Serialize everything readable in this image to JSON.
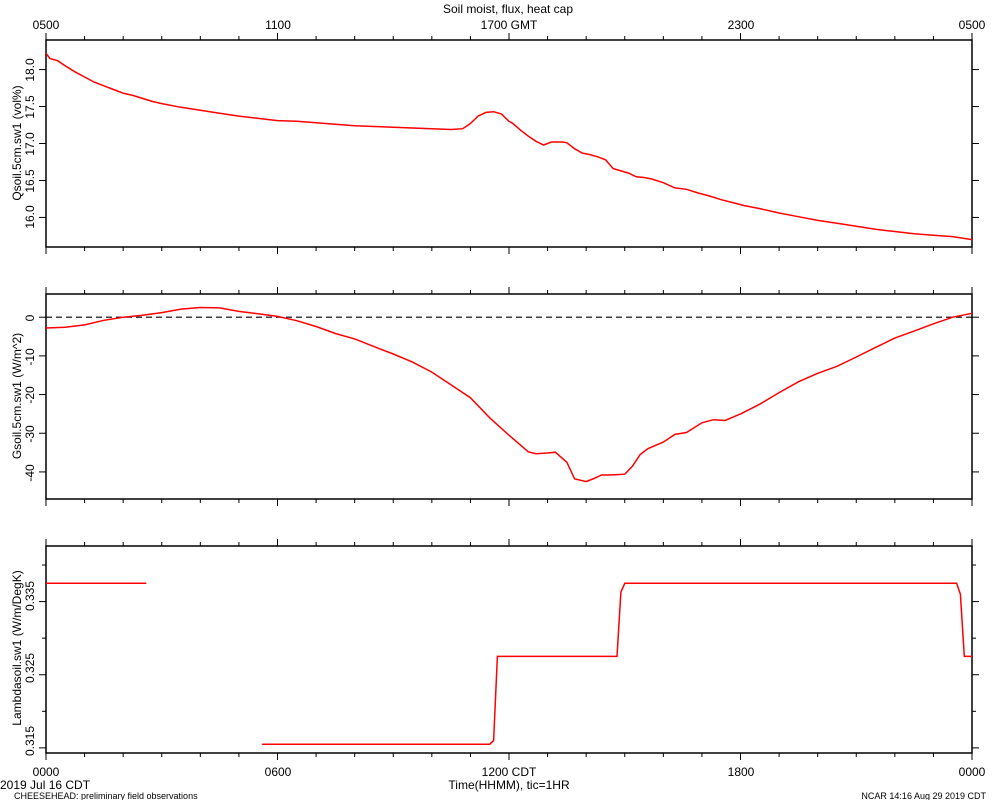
{
  "chart_data": [
    {
      "type": "line",
      "title": "Soil moist, flux, heat cap",
      "top_axis_ticks": [
        "0500",
        "1100",
        "1700 GMT",
        "2300",
        "0500"
      ],
      "ylabel": "Qsoil.5cm.sw1 (vol%)",
      "yticks": [
        "16.0",
        "16.5",
        "17.0",
        "17.5",
        "18.0"
      ],
      "ylim": [
        15.6,
        18.4
      ],
      "xlim": [
        0,
        24
      ],
      "color": "#ff0000",
      "x": [
        0,
        0.1,
        0.3,
        0.5,
        0.75,
        1,
        1.25,
        1.5,
        1.75,
        2,
        2.25,
        2.5,
        2.75,
        3,
        3.5,
        4,
        4.5,
        5,
        5.5,
        6,
        6.5,
        7,
        7.5,
        8,
        8.5,
        9,
        9.5,
        10,
        10.5,
        10.8,
        11,
        11.2,
        11.4,
        11.6,
        11.8,
        12,
        12.1,
        12.3,
        12.5,
        12.7,
        12.9,
        13.1,
        13.25,
        13.4,
        13.5,
        13.7,
        13.9,
        14.1,
        14.3,
        14.5,
        14.7,
        14.9,
        15.1,
        15.3,
        15.5,
        15.7,
        16,
        16.3,
        16.6,
        16.9,
        17.2,
        17.5,
        17.8,
        18.1,
        18.5,
        19,
        19.5,
        20,
        20.5,
        21,
        21.5,
        22,
        22.5,
        23,
        23.5,
        24
      ],
      "values": [
        18.22,
        18.15,
        18.12,
        18.05,
        17.97,
        17.9,
        17.83,
        17.78,
        17.73,
        17.68,
        17.65,
        17.61,
        17.57,
        17.54,
        17.49,
        17.45,
        17.41,
        17.37,
        17.34,
        17.31,
        17.3,
        17.28,
        17.26,
        17.24,
        17.23,
        17.22,
        17.21,
        17.2,
        17.19,
        17.2,
        17.27,
        17.37,
        17.42,
        17.43,
        17.4,
        17.3,
        17.27,
        17.18,
        17.1,
        17.03,
        16.98,
        17.02,
        17.02,
        17.02,
        17.01,
        16.93,
        16.87,
        16.85,
        16.82,
        16.78,
        16.66,
        16.63,
        16.6,
        16.55,
        16.54,
        16.52,
        16.47,
        16.4,
        16.38,
        16.33,
        16.29,
        16.24,
        16.2,
        16.16,
        16.12,
        16.06,
        16.01,
        15.96,
        15.92,
        15.88,
        15.84,
        15.81,
        15.78,
        15.76,
        15.74,
        15.7
      ]
    },
    {
      "type": "line",
      "ylabel": "Gsoil.5cm.sw1 (W/m^2)",
      "yticks": [
        "-40",
        "-30",
        "-20",
        "-10",
        "0"
      ],
      "ylim": [
        -47,
        6
      ],
      "xlim": [
        0,
        24
      ],
      "zero_line": true,
      "color": "#ff0000",
      "x": [
        0,
        0.5,
        1,
        1.5,
        2,
        2.5,
        3,
        3.5,
        4,
        4.5,
        5,
        5.5,
        6,
        6.5,
        7,
        7.5,
        8,
        8.5,
        9,
        9.5,
        10,
        10.5,
        11,
        11.5,
        12,
        12.5,
        12.7,
        13,
        13.2,
        13.5,
        13.7,
        14,
        14.2,
        14.4,
        14.6,
        14.8,
        15,
        15.2,
        15.4,
        15.6,
        16,
        16.3,
        16.6,
        17,
        17.3,
        17.6,
        18,
        18.5,
        19,
        19.5,
        20,
        20.5,
        21,
        21.5,
        22,
        22.5,
        23,
        23.5,
        24
      ],
      "values": [
        -2.8,
        -2.6,
        -2,
        -0.8,
        0,
        0.5,
        1.2,
        2.1,
        2.5,
        2.4,
        1.5,
        0.9,
        0.2,
        -0.9,
        -2.4,
        -4.2,
        -5.6,
        -7.6,
        -9.5,
        -11.6,
        -14.2,
        -17.5,
        -20.8,
        -26,
        -30.5,
        -34.8,
        -35.3,
        -35.1,
        -34.9,
        -37.5,
        -41.8,
        -42.5,
        -41.7,
        -40.8,
        -40.8,
        -40.7,
        -40.6,
        -38.5,
        -35.5,
        -34,
        -32.3,
        -30.3,
        -29.8,
        -27.3,
        -26.5,
        -26.7,
        -25,
        -22.5,
        -19.5,
        -16.7,
        -14.5,
        -12.7,
        -10.3,
        -7.8,
        -5.4,
        -3.6,
        -1.7,
        0,
        1
      ]
    },
    {
      "type": "line",
      "ylabel": "Lambdasoil.sw1 (W/m/DegK)",
      "yticks": [
        "0.315",
        "0.325",
        "0.335"
      ],
      "ylim": [
        0.3143,
        0.3426
      ],
      "xlim": [
        0,
        24
      ],
      "xticks": [
        "0000",
        "0600",
        "1200 CDT",
        "1800",
        "0000"
      ],
      "xlabel": "Time(HHMM), tic=1HR",
      "date_label": "2019 Jul 16 CDT",
      "color": "#ff0000",
      "segments": [
        {
          "x": [
            0,
            2.6
          ],
          "values": [
            0.3375,
            0.3375
          ]
        },
        {
          "x": [
            5.6,
            11.5,
            11.6,
            11.7,
            14.8,
            14.9,
            15.0,
            23.6,
            23.7,
            23.8,
            24
          ],
          "values": [
            0.3155,
            0.3155,
            0.316,
            0.3275,
            0.3275,
            0.3363,
            0.3375,
            0.3375,
            0.336,
            0.3275,
            0.3275
          ]
        }
      ]
    }
  ],
  "footer": {
    "left": "CHEESEHEAD: preliminary field observations",
    "right": "NCAR 14:16 Aug 29 2019 CDT"
  }
}
